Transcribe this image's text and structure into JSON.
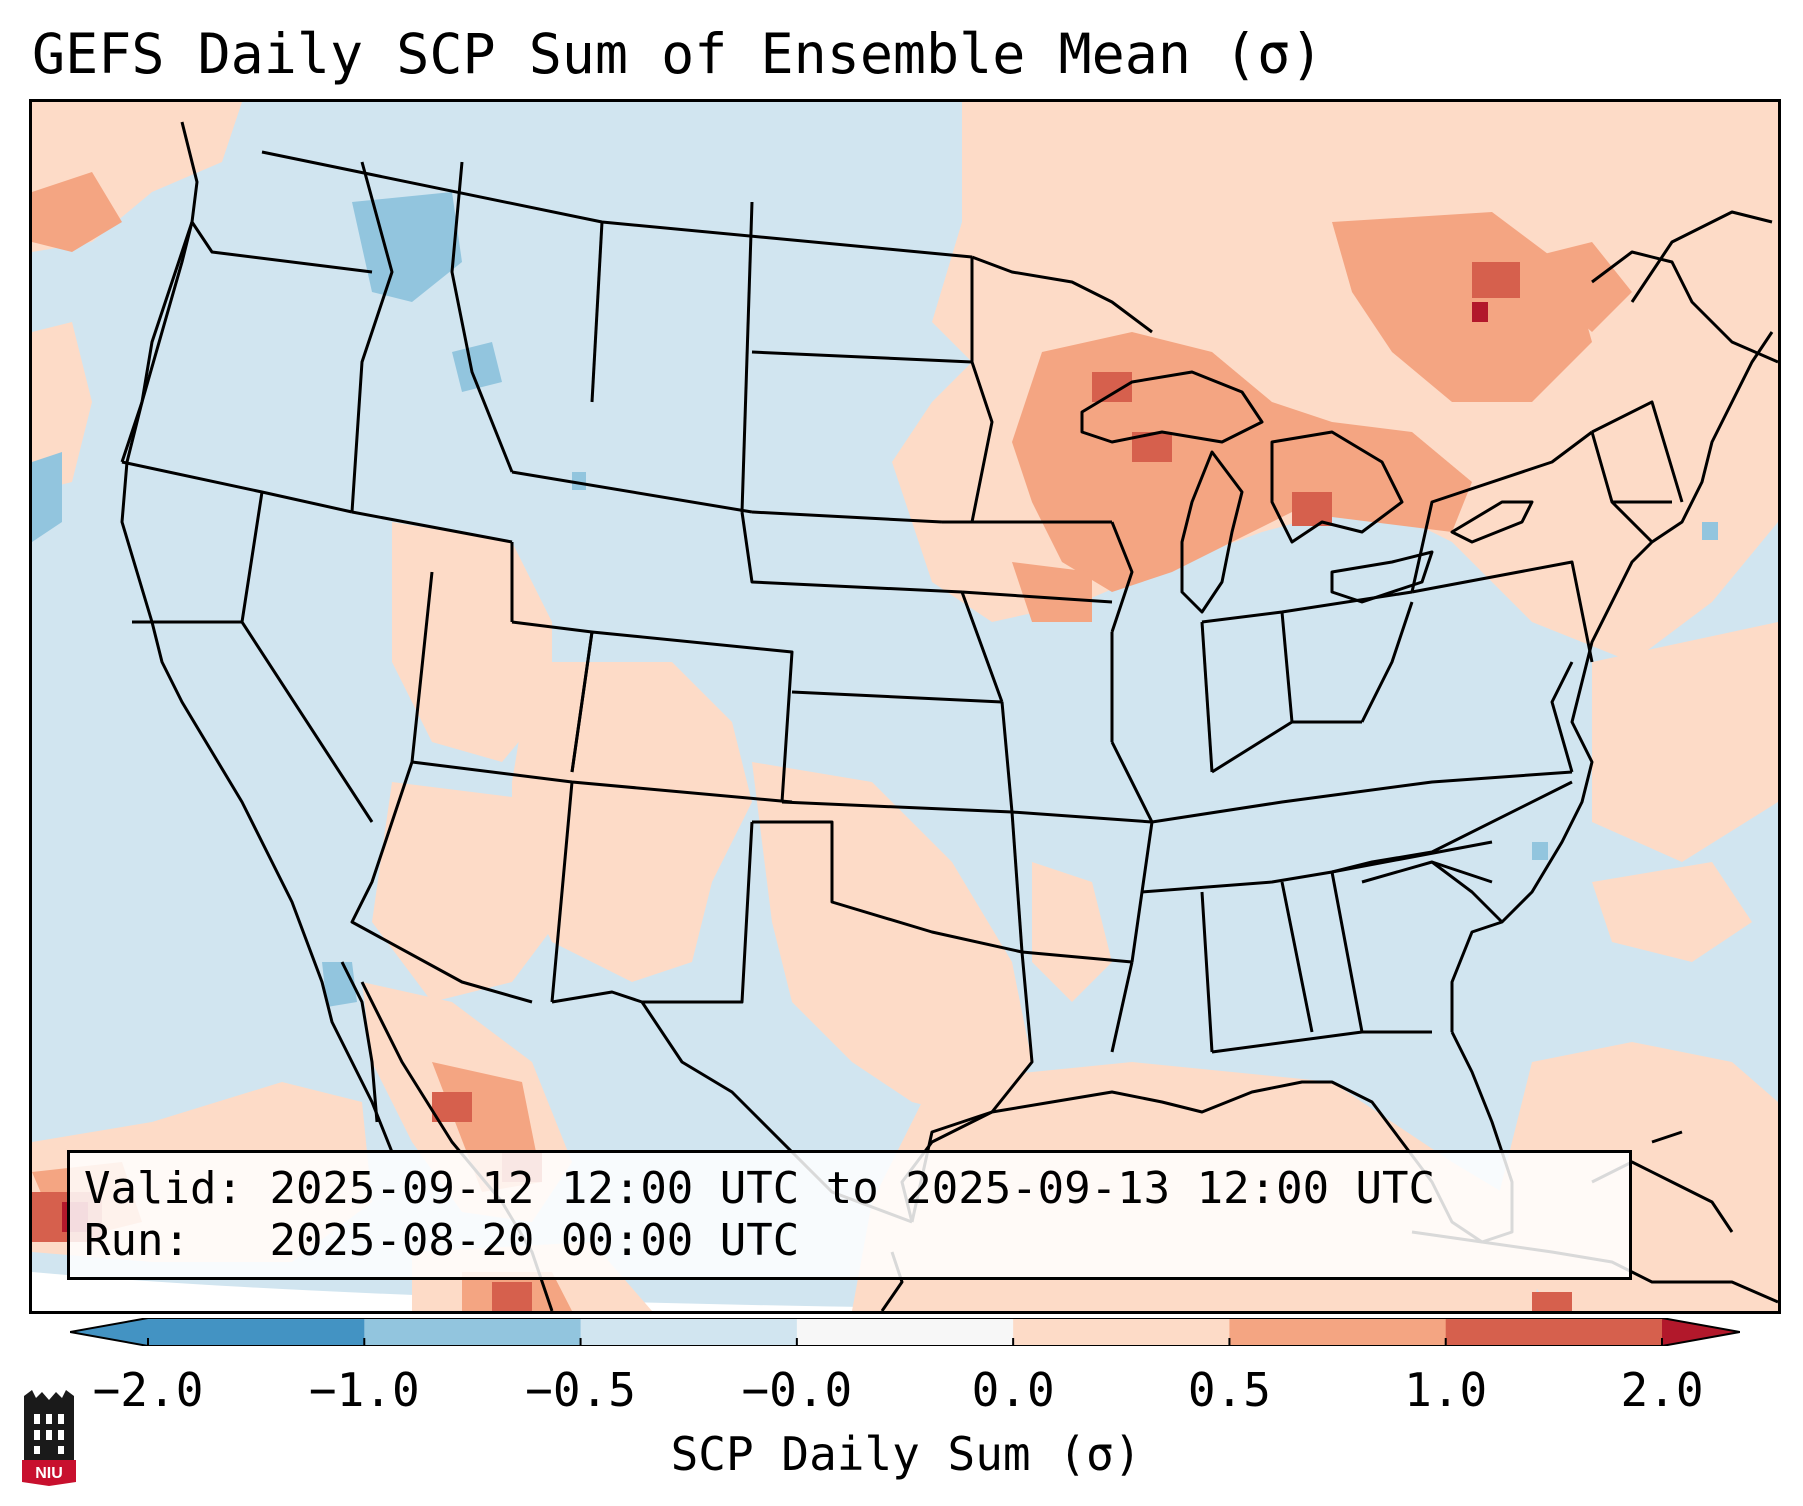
{
  "title": "GEFS Daily SCP Sum of Ensemble Mean (σ)",
  "valid_label": "Valid:",
  "valid_value": "2025-09-12 12:00 UTC to 2025-09-13 12:00 UTC",
  "run_label": "Run:",
  "run_value": "2025-08-20 00:00 UTC",
  "colorbar": {
    "label": "SCP Daily Sum (σ)",
    "ticks": [
      "−2.0",
      "−1.0",
      "−0.5",
      "−0.0",
      "0.0",
      "0.5",
      "1.0",
      "2.0"
    ],
    "colors": [
      "#4393c3",
      "#92c5de",
      "#d1e5f0",
      "#f7f7f7",
      "#fddbc7",
      "#f4a582",
      "#d6604d",
      "#b2182b"
    ]
  },
  "logo_text": "NIU",
  "colors": {
    "neutral_blue": "#d1e5f0",
    "light_red": "#fddbc7",
    "mid_red": "#f4a582",
    "dark_red": "#d6604d",
    "deep_red": "#b2182b",
    "light_blue": "#92c5de"
  }
}
